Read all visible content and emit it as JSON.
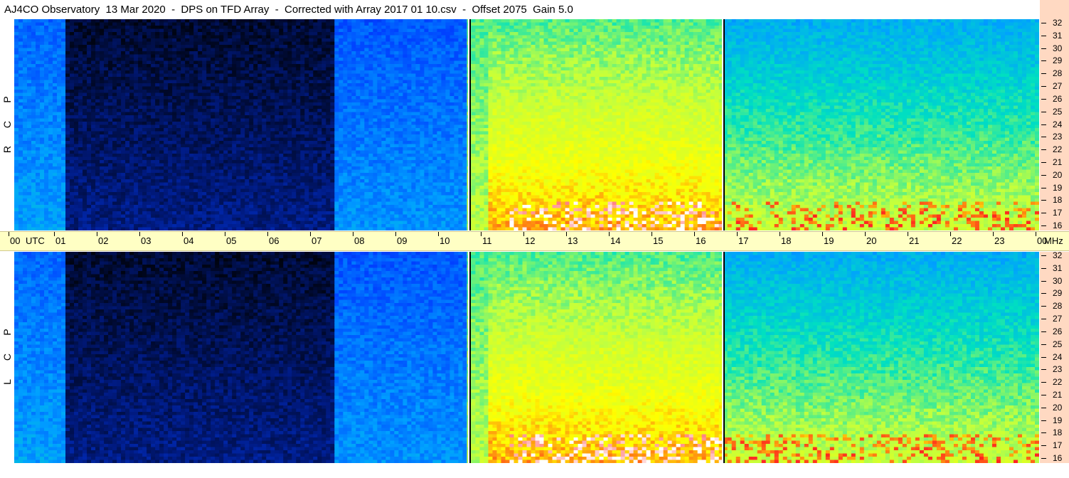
{
  "header": {
    "title": "AJ4CO Observatory  13 Mar 2020  -  DPS on TFD Array  -  Corrected with Array 2017 01 10.csv  -  Offset 2075  Gain 5.0"
  },
  "chart_data": {
    "type": "heatmap",
    "title": "AJ4CO Observatory  13 Mar 2020  -  DPS on TFD Array  -  Corrected with Array 2017 01 10.csv  -  Offset 2075  Gain 5.0",
    "xlabel": "UTC",
    "ylabel": "MHz",
    "x_ticks": [
      "00",
      "01",
      "02",
      "03",
      "04",
      "05",
      "06",
      "07",
      "08",
      "09",
      "10",
      "11",
      "12",
      "13",
      "14",
      "15",
      "16",
      "17",
      "18",
      "19",
      "20",
      "21",
      "22",
      "23",
      "00"
    ],
    "xlim": [
      0,
      24
    ],
    "y_ticks": [
      "32",
      "31",
      "30",
      "29",
      "28",
      "27",
      "26",
      "25",
      "24",
      "23",
      "22",
      "21",
      "20",
      "19",
      "18",
      "17",
      "16"
    ],
    "ylim": [
      16,
      32
    ],
    "panels": [
      {
        "name": "R C P",
        "polarization_letters": [
          "R",
          "C",
          "P"
        ]
      },
      {
        "name": "L C P",
        "polarization_letters": [
          "L",
          "C",
          "P"
        ]
      }
    ],
    "colormap": [
      "#000000",
      "#001a80",
      "#0040ff",
      "#00a0ff",
      "#00e0c0",
      "#c0ff40",
      "#ffff00",
      "#ff2020",
      "#ffffff"
    ],
    "markers_utc": [
      10.65,
      16.6
    ],
    "intensity_regions": [
      {
        "t0": 0,
        "t1": 1.2,
        "level": 0.3
      },
      {
        "t0": 1.2,
        "t1": 7.5,
        "level": 0.05
      },
      {
        "t0": 7.5,
        "t1": 10.6,
        "level": 0.28
      },
      {
        "t0": 10.6,
        "t1": 16.6,
        "level": 0.55
      },
      {
        "t0": 16.6,
        "t1": 24,
        "level": 0.4
      }
    ],
    "grid": false
  },
  "axes": {
    "utc_label": "UTC",
    "mhz_label": "MHz"
  }
}
